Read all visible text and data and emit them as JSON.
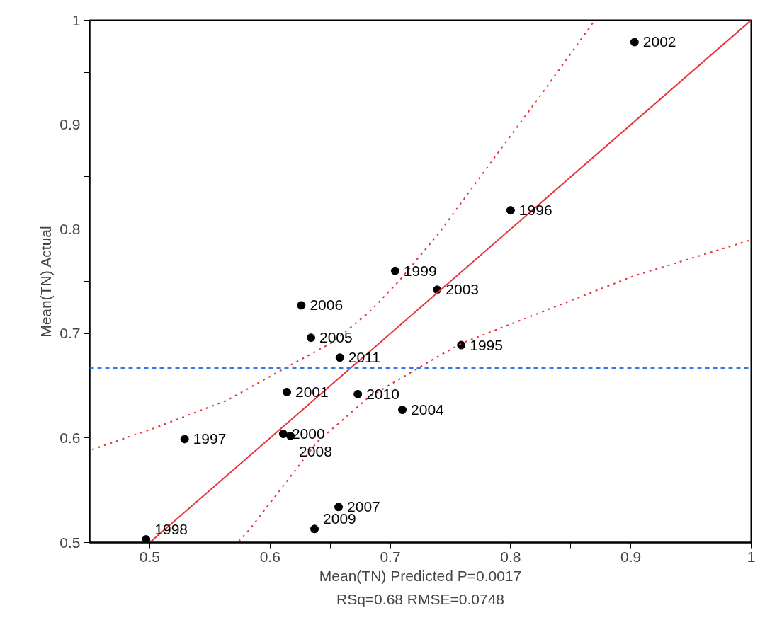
{
  "chart_data": {
    "type": "scatter",
    "xlabel": "Mean(TN) Predicted P=0.0017",
    "ylabel": "Mean(TN) Actual",
    "xlim": [
      0.45,
      1.0
    ],
    "ylim": [
      0.5,
      1.0
    ],
    "xticks": [
      0.5,
      {
        "value": 0.55,
        "label": null
      },
      0.6,
      {
        "value": 0.65,
        "label": null
      },
      0.7,
      {
        "value": 0.75,
        "label": null
      },
      0.8,
      {
        "value": 0.85,
        "label": null
      },
      0.9,
      {
        "value": 0.95,
        "label": null
      },
      1
    ],
    "yticks": [
      0.5,
      {
        "value": 0.55,
        "label": null
      },
      0.6,
      {
        "value": 0.65,
        "label": null
      },
      0.7,
      {
        "value": 0.75,
        "label": null
      },
      0.8,
      {
        "value": 0.85,
        "label": null
      },
      0.9,
      {
        "value": 0.95,
        "label": null
      },
      1
    ],
    "grid": false,
    "series": [
      {
        "marker": "circle",
        "color": "#000000",
        "x": [
          0.497,
          0.529,
          0.611,
          0.617,
          0.614,
          0.626,
          0.634,
          0.658,
          0.673,
          0.657,
          0.637,
          0.704,
          0.739,
          0.8,
          0.759,
          0.71,
          0.903
        ],
        "values": [
          0.503,
          0.599,
          0.604,
          0.602,
          0.644,
          0.727,
          0.696,
          0.677,
          0.642,
          0.534,
          0.513,
          0.76,
          0.742,
          0.818,
          0.689,
          0.627,
          0.979
        ]
      },
      {
        "type": "line",
        "marker": "none",
        "line_style": "solid",
        "color": "#e8303a",
        "x": [
          0.5,
          1.0
        ],
        "values": [
          0.5,
          1.0
        ]
      },
      {
        "type": "line",
        "marker": "none",
        "line_style": "dotted",
        "color": "#e8303a",
        "x": [
          0.452,
          0.505,
          0.564,
          0.611,
          0.651,
          0.682,
          0.707,
          0.741,
          0.769,
          0.83,
          0.87
        ],
        "values": [
          0.589,
          0.61,
          0.636,
          0.666,
          0.691,
          0.72,
          0.75,
          0.797,
          0.841,
          0.936,
          1.0
        ]
      },
      {
        "type": "line",
        "marker": "none",
        "line_style": "dotted",
        "color": "#e8303a",
        "x": [
          0.574,
          0.584,
          0.639,
          0.682,
          0.741,
          0.76,
          0.831,
          0.902,
          0.998
        ],
        "values": [
          0.501,
          0.514,
          0.596,
          0.639,
          0.679,
          0.691,
          0.723,
          0.755,
          0.789
        ]
      }
    ],
    "ref_lines": [
      {
        "axis": "y",
        "value": 0.667,
        "color": "#3a75f0",
        "line_style": "dashed"
      }
    ],
    "annotations": [
      {
        "text": "1998",
        "x": 0.497,
        "y": 0.503
      },
      {
        "text": "1997",
        "x": 0.529,
        "y": 0.599
      },
      {
        "text": "2000",
        "x": 0.611,
        "y": 0.604
      },
      {
        "text": "2008",
        "x": 0.617,
        "y": 0.602
      },
      {
        "text": "2001",
        "x": 0.614,
        "y": 0.644
      },
      {
        "text": "2006",
        "x": 0.626,
        "y": 0.727
      },
      {
        "text": "2005",
        "x": 0.634,
        "y": 0.696
      },
      {
        "text": "2011",
        "x": 0.658,
        "y": 0.677
      },
      {
        "text": "2010",
        "x": 0.673,
        "y": 0.642
      },
      {
        "text": "2007",
        "x": 0.657,
        "y": 0.534
      },
      {
        "text": "2009",
        "x": 0.637,
        "y": 0.513
      },
      {
        "text": "1999",
        "x": 0.704,
        "y": 0.76
      },
      {
        "text": "2003",
        "x": 0.739,
        "y": 0.742
      },
      {
        "text": "1996",
        "x": 0.8,
        "y": 0.818
      },
      {
        "text": "1995",
        "x": 0.759,
        "y": 0.689
      },
      {
        "text": "2004",
        "x": 0.71,
        "y": 0.627
      },
      {
        "text": "2002",
        "x": 0.903,
        "y": 0.979
      },
      "RSq=0.68 RMSE=0.0748"
    ]
  }
}
